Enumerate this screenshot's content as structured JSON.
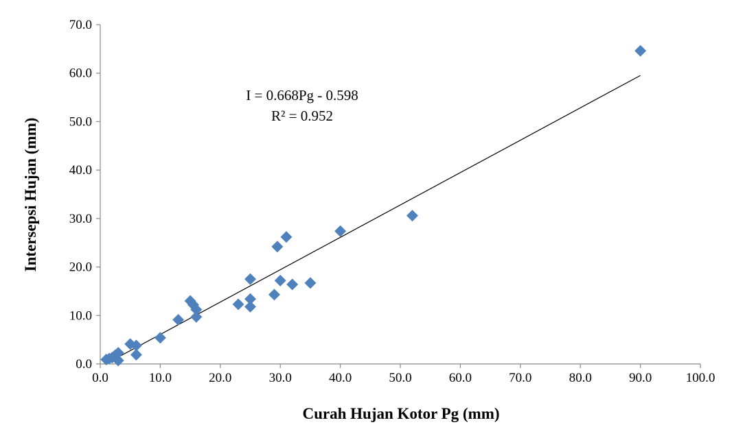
{
  "chart_data": {
    "type": "scatter",
    "xlabel": "Curah Hujan Kotor Pg (mm)",
    "ylabel": "Intersepsi Hujan (mm)",
    "xlim": [
      0,
      100
    ],
    "ylim": [
      0,
      70
    ],
    "x_ticks": [
      "0.0",
      "10.0",
      "20.0",
      "30.0",
      "40.0",
      "50.0",
      "60.0",
      "70.0",
      "80.0",
      "90.0",
      "100.0"
    ],
    "y_ticks": [
      "0.0",
      "10.0",
      "20.0",
      "30.0",
      "40.0",
      "50.0",
      "60.0",
      "70.0"
    ],
    "grid": false,
    "marker_color": "#4F81BD",
    "marker": "diamond",
    "series": [
      {
        "points": [
          [
            1.0,
            0.9
          ],
          [
            1.5,
            1.1
          ],
          [
            2.0,
            1.3
          ],
          [
            2.5,
            1.8
          ],
          [
            3.0,
            2.3
          ],
          [
            3.0,
            0.7
          ],
          [
            5.0,
            4.1
          ],
          [
            6.0,
            3.8
          ],
          [
            6.0,
            1.9
          ],
          [
            10.0,
            5.4
          ],
          [
            13.0,
            9.1
          ],
          [
            15.0,
            13.0
          ],
          [
            15.5,
            12.2
          ],
          [
            16.0,
            11.2
          ],
          [
            16.0,
            9.7
          ],
          [
            23.0,
            12.3
          ],
          [
            25.0,
            17.5
          ],
          [
            25.0,
            13.4
          ],
          [
            25.0,
            11.8
          ],
          [
            29.0,
            14.3
          ],
          [
            29.5,
            24.2
          ],
          [
            30.0,
            17.2
          ],
          [
            31.0,
            26.2
          ],
          [
            32.0,
            16.4
          ],
          [
            35.0,
            16.7
          ],
          [
            40.0,
            27.4
          ],
          [
            52.0,
            30.6
          ],
          [
            90.0,
            64.6
          ]
        ]
      }
    ],
    "trendline": {
      "slope": 0.668,
      "intercept": -0.598,
      "x_range": [
        1.0,
        90.0
      ],
      "color": "#000000"
    },
    "annotations": {
      "equation": "I = 0.668Pg - 0.598",
      "r_squared": "R² = 0.952"
    }
  }
}
